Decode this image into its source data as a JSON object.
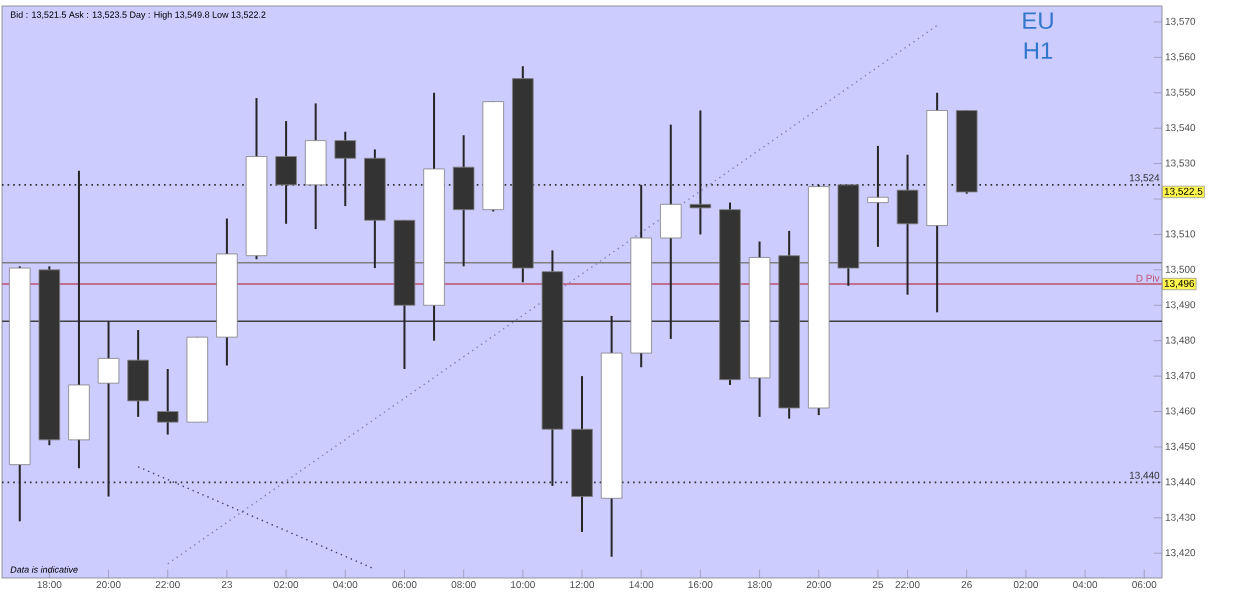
{
  "chart_data": {
    "type": "candlestick",
    "title": "EU",
    "subtitle": "H1",
    "annotations": [
      "Bid : 13,521.5 Ask : 13,523.5 Day : High 13,549.8 Low 13,522.2",
      "Data is indicative",
      "13,522.5",
      {
        "text": "13,496",
        "y": 13496
      }
    ],
    "categories": [
      null,
      "18:00",
      null,
      "20:00",
      null,
      "22:00",
      null,
      "23",
      null,
      "02:00",
      null,
      "04:00",
      null,
      "06:00",
      null,
      "08:00",
      null,
      "10:00",
      null,
      "12:00",
      null,
      "14:00",
      null,
      "16:00",
      null,
      "18:00",
      null,
      "20:00",
      null,
      "25",
      "22:00",
      null,
      "26",
      null,
      "02:00",
      null,
      "04:00",
      null,
      "06:00"
    ],
    "ohlc": [
      [
        13445,
        13501,
        13429,
        13500.5
      ],
      [
        13500,
        13501,
        13450.5,
        13452
      ],
      [
        13452,
        13528,
        13444,
        13467.5
      ],
      [
        13468,
        13485.5,
        13436,
        13475
      ],
      [
        13474.5,
        13483,
        13458.5,
        13463
      ],
      [
        13460,
        13472,
        13453.5,
        13457
      ],
      [
        13457,
        13481,
        13457,
        13481
      ],
      [
        13481,
        13514.5,
        13473,
        13504.5
      ],
      [
        13504,
        13548.5,
        13503,
        13532
      ],
      [
        13532,
        13542,
        13513,
        13524
      ],
      [
        13524,
        13547,
        13511.5,
        13536.5
      ],
      [
        13536.5,
        13539,
        13518,
        13531.5
      ],
      [
        13531.5,
        13534,
        13500.5,
        13514
      ],
      [
        13514,
        13514,
        13472,
        13490
      ],
      [
        13490,
        13550,
        13480,
        13528.5
      ],
      [
        13529,
        13538,
        13501,
        13517
      ],
      [
        13517,
        13547.5,
        13516.5,
        13547.5
      ],
      [
        13554,
        13557.5,
        13496.5,
        13500.5
      ],
      [
        13499.5,
        13505.5,
        13439,
        13455
      ],
      [
        13455,
        13470,
        13426,
        13436
      ],
      [
        13435.5,
        13487,
        13419,
        13476.5
      ],
      [
        13476.5,
        13524,
        13472.5,
        13509
      ],
      [
        13509,
        13541,
        13480.5,
        13518.5
      ],
      [
        13518.5,
        13545,
        13510,
        13517.5
      ],
      [
        13517,
        13519,
        13467.5,
        13469
      ],
      [
        13469.5,
        13508,
        13458.5,
        13503.5
      ],
      [
        13504,
        13511,
        13458,
        13461
      ],
      [
        13461,
        13524,
        13459,
        13523.5
      ],
      [
        13524,
        13524,
        13495.5,
        13500.5
      ],
      [
        13519,
        13535,
        13506.5,
        13520.5
      ],
      [
        13522.5,
        13532.5,
        13493,
        13513
      ],
      [
        13512.5,
        13550,
        13488,
        13545
      ],
      [
        13545,
        13545,
        13521.5,
        13522
      ],
      null,
      null,
      null,
      null,
      null,
      null
    ],
    "series": [
      {
        "type": "line",
        "values": [
          null,
          null,
          null,
          null,
          null,
          13417,
          null,
          null,
          null,
          null,
          null,
          null,
          null,
          null,
          null,
          null,
          null,
          null,
          null,
          null,
          null,
          null,
          null,
          null,
          null,
          null,
          null,
          null,
          null,
          null,
          null,
          13569,
          null,
          null,
          null,
          null,
          null,
          null,
          null
        ],
        "color": "#8080b0",
        "line_style": "dotted"
      },
      {
        "type": "line",
        "values": [
          null,
          null,
          null,
          null,
          13444.4,
          null,
          null,
          null,
          null,
          null,
          null,
          null,
          13415.5,
          null,
          null,
          null,
          null,
          null,
          null,
          null,
          null,
          null,
          null,
          null,
          null,
          null,
          null,
          null,
          null,
          null,
          null,
          null,
          null,
          null,
          null,
          null,
          null,
          null,
          null
        ],
        "color": "#404060",
        "line_style": "dotted"
      }
    ],
    "ref_lines": [
      {
        "axis": "y",
        "value": 13524,
        "label": "13,524",
        "line_style": "dotted",
        "color": "#303030"
      },
      {
        "axis": "y",
        "value": 13440,
        "label": "13,440",
        "line_style": "dotted",
        "color": "#303030"
      },
      {
        "axis": "y",
        "value": 13502,
        "color": "#808080"
      },
      {
        "axis": "y",
        "value": 13485.5,
        "color": "#404040"
      },
      {
        "axis": "y",
        "value": 13496,
        "label": "D Piv",
        "color": "#c05070"
      }
    ],
    "ylim": [
      13413,
      13574.5
    ],
    "yticks": [
      {
        "value": 13420,
        "label": "13,420"
      },
      {
        "value": 13430,
        "label": "13,430"
      },
      {
        "value": 13440,
        "label": "13,440"
      },
      {
        "value": 13450,
        "label": "13,450"
      },
      {
        "value": 13460,
        "label": "13,460"
      },
      {
        "value": 13470,
        "label": "13,470"
      },
      {
        "value": 13480,
        "label": "13,480"
      },
      {
        "value": 13490,
        "label": "13,490"
      },
      {
        "value": 13500,
        "label": "13,500"
      },
      {
        "value": 13510,
        "label": "13,510"
      },
      {
        "value": 13520,
        "label": null
      },
      {
        "value": 13530,
        "label": "13,530"
      },
      {
        "value": 13540,
        "label": "13,540"
      },
      {
        "value": 13550,
        "label": "13,550"
      },
      {
        "value": 13560,
        "label": "13,560"
      },
      {
        "value": 13570,
        "label": "13,570"
      }
    ],
    "grid": false
  }
}
